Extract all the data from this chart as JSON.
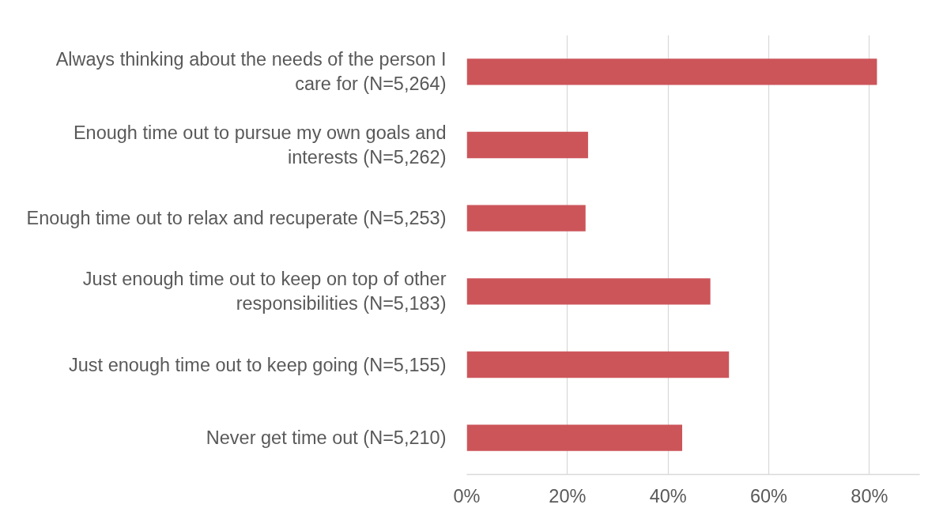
{
  "chart_data": {
    "type": "bar",
    "orientation": "horizontal",
    "categories": [
      "Always thinking about the needs of the person I care for (N=5,264)",
      "Enough time out to pursue my own goals and interests (N=5,262)",
      "Enough time out to relax and recuperate (N=5,253)",
      "Just enough time out to keep on top of other responsibilities (N=5,183)",
      "Just enough time out to keep going (N=5,155)",
      "Never get time out (N=5,210)"
    ],
    "values": [
      81.5,
      24.1,
      23.6,
      48.4,
      52.1,
      42.8
    ],
    "color": "#cc555a",
    "xlim": [
      0,
      90
    ],
    "xticks": [
      {
        "value": 0,
        "label": "0%"
      },
      {
        "value": 20,
        "label": "20%"
      },
      {
        "value": 40,
        "label": "40%"
      },
      {
        "value": 60,
        "label": "60%"
      },
      {
        "value": 80,
        "label": "80%"
      }
    ],
    "grid": "x"
  }
}
